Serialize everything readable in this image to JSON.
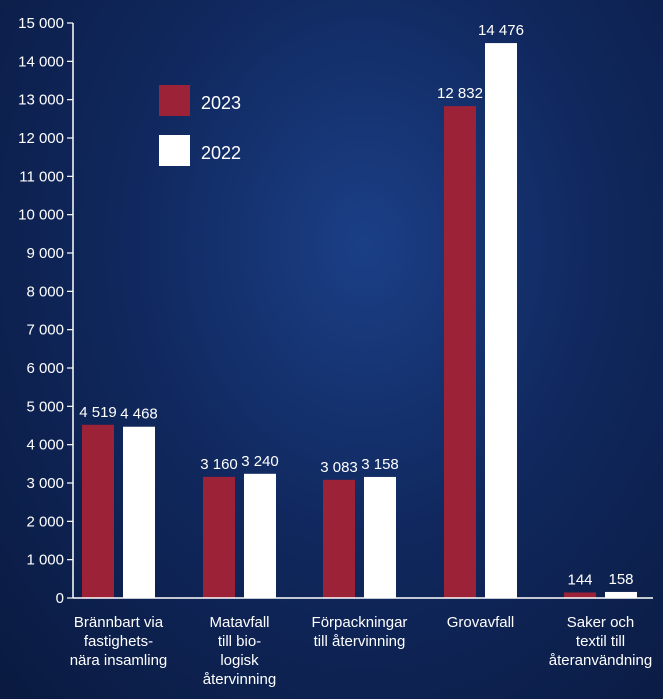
{
  "chart_data": {
    "type": "bar",
    "categories": [
      [
        "Brännbart via",
        "fastighets-",
        "nära insamling"
      ],
      [
        "Matavfall",
        "till bio-",
        "logisk",
        "återvinning"
      ],
      [
        "Förpackningar",
        "till återvinning"
      ],
      [
        "Grovavfall"
      ],
      [
        "Saker och",
        "textil till",
        "återanvändning"
      ]
    ],
    "series": [
      {
        "name": "2023",
        "color": "#9b2237",
        "values": [
          4519,
          3160,
          3083,
          12832,
          144
        ],
        "labels": [
          "4 519",
          "3 160",
          "3 083",
          "12 832",
          "144"
        ]
      },
      {
        "name": "2022",
        "color": "#ffffff",
        "values": [
          4468,
          3240,
          3158,
          14476,
          158
        ],
        "labels": [
          "4 468",
          "3 240",
          "3 158",
          "14 476",
          "158"
        ]
      }
    ],
    "yticks": [
      0,
      1000,
      2000,
      3000,
      4000,
      5000,
      6000,
      7000,
      8000,
      9000,
      10000,
      11000,
      12000,
      13000,
      14000,
      15000
    ],
    "ytick_labels": [
      "0",
      "1 000",
      "2 000",
      "3 000",
      "4 000",
      "5 000",
      "6 000",
      "7 000",
      "8 000",
      "9 000",
      "10 000",
      "11 000",
      "12 000",
      "13 000",
      "14 000",
      "15 000"
    ],
    "ylim": [
      0,
      15000
    ],
    "legend": {
      "position": "top-left"
    },
    "grid": false
  }
}
